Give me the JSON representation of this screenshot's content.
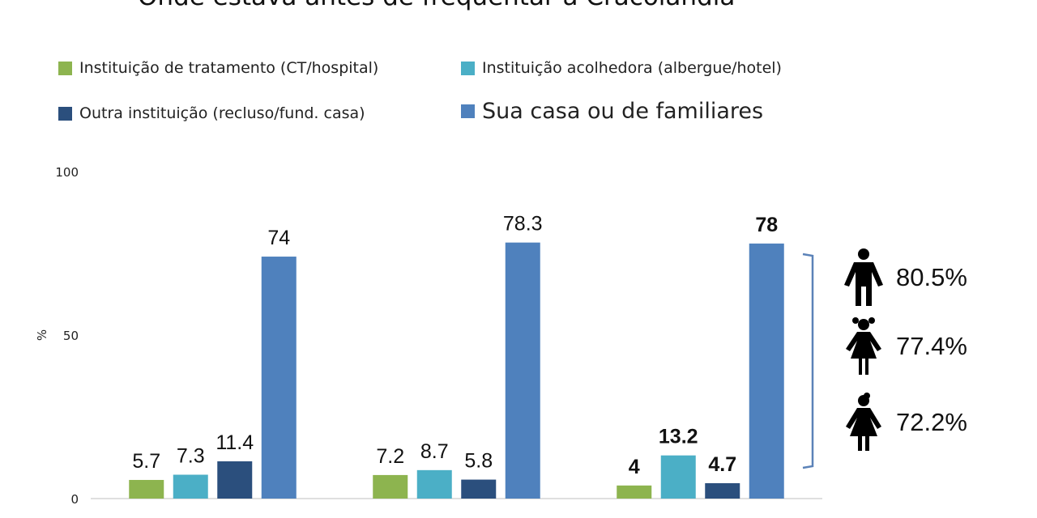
{
  "title": "Onde estava antes de frequentar a Cracolândia",
  "legend": [
    {
      "label": "Instituição de tratamento (CT/hospital)",
      "color": "#8DB44F"
    },
    {
      "label": "Instituição acolhedora (albergue/hotel)",
      "color": "#4BAFC6"
    },
    {
      "label": "Outra instituição (recluso/fund. casa)",
      "color": "#2B4F7D"
    },
    {
      "label": "Sua casa ou de familiares",
      "color": "#4F81BD"
    }
  ],
  "chart_data": {
    "type": "bar",
    "title": "Onde estava antes de frequentar a Cracolândia",
    "ylabel": "%",
    "ylim": [
      0,
      100
    ],
    "yticks": [
      "0",
      "50",
      "100"
    ],
    "categories": [
      "",
      "",
      ""
    ],
    "series": [
      {
        "name": "Instituição de tratamento (CT/hospital)",
        "color": "#8DB44F",
        "values": [
          5.7,
          7.2,
          4
        ],
        "labels": [
          "5.7",
          "7.2",
          "4"
        ]
      },
      {
        "name": "Instituição acolhedora (albergue/hotel)",
        "color": "#4BAFC6",
        "values": [
          7.3,
          8.7,
          13.2
        ],
        "labels": [
          "7.3",
          "8.7",
          "13.2"
        ]
      },
      {
        "name": "Outra instituição (recluso/fund. casa)",
        "color": "#2B4F7D",
        "values": [
          11.4,
          5.8,
          4.7
        ],
        "labels": [
          "11.4",
          "5.8",
          "4.7"
        ]
      },
      {
        "name": "Sua casa ou de familiares",
        "color": "#4F81BD",
        "values": [
          74,
          78.3,
          78
        ],
        "labels": [
          "74",
          "78.3",
          "78"
        ]
      }
    ],
    "bold_group": 2
  },
  "annotations": [
    {
      "figure": "man-icon",
      "value": "80.5%"
    },
    {
      "figure": "girl-icon",
      "value": "77.4%"
    },
    {
      "figure": "woman-icon",
      "value": "72.2%"
    }
  ]
}
